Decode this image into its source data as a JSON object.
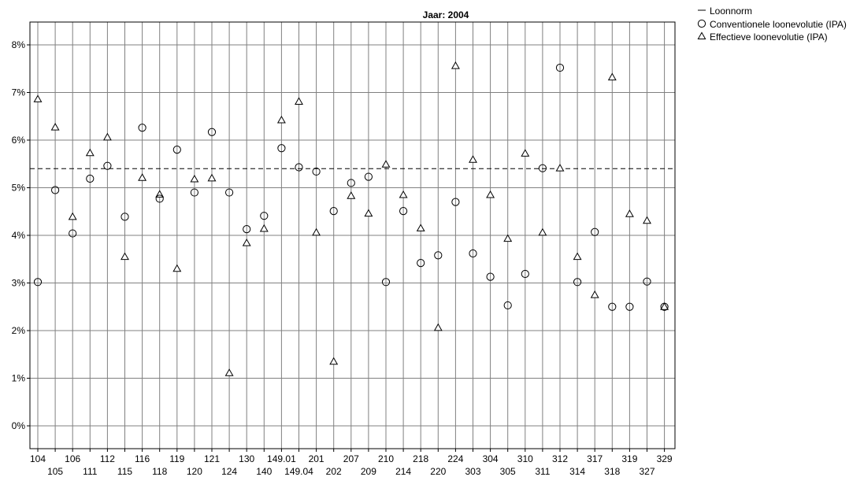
{
  "chart_data": {
    "type": "scatter",
    "title": "Jaar: 2004",
    "xlabel": "",
    "ylabel": "",
    "ylim": [
      -0.4,
      8.5
    ],
    "yticks": [
      0,
      1,
      2,
      3,
      4,
      5,
      6,
      7,
      8
    ],
    "ytick_labels": [
      "0%",
      "1%",
      "2%",
      "3%",
      "4%",
      "5%",
      "6%",
      "7%",
      "8%"
    ],
    "grid": true,
    "legend_position": "top-right",
    "categories": [
      "104",
      "105",
      "106",
      "111",
      "112",
      "115",
      "116",
      "118",
      "119",
      "120",
      "121",
      "124",
      "130",
      "140",
      "149.01",
      "149.04",
      "201",
      "202",
      "207",
      "209",
      "210",
      "214",
      "218",
      "220",
      "224",
      "303",
      "304",
      "305",
      "310",
      "311",
      "312",
      "314",
      "317",
      "318",
      "319",
      "327",
      "329"
    ],
    "reference_line": {
      "name": "Loonnorm",
      "value": 5.4,
      "style": "dashed"
    },
    "series": [
      {
        "name": "Conventionele loonevolutie (IPA)",
        "marker": "circle",
        "values": [
          3.02,
          4.95,
          4.04,
          5.19,
          5.46,
          4.39,
          6.26,
          4.77,
          5.8,
          4.9,
          6.17,
          4.9,
          4.13,
          4.41,
          5.83,
          5.43,
          5.34,
          4.51,
          5.1,
          5.23,
          3.02,
          4.51,
          3.42,
          3.58,
          4.7,
          3.62,
          3.13,
          2.53,
          3.19,
          5.41,
          7.52,
          3.02,
          4.07,
          2.5,
          2.5,
          3.03,
          2.5
        ]
      },
      {
        "name": "Effectieve loonevolutie (IPA)",
        "marker": "triangle",
        "values": [
          6.86,
          6.27,
          4.39,
          5.73,
          6.06,
          3.55,
          5.21,
          4.86,
          3.3,
          5.18,
          5.2,
          1.11,
          3.84,
          4.14,
          6.42,
          6.81,
          4.06,
          1.35,
          4.83,
          4.46,
          5.49,
          4.85,
          4.15,
          2.06,
          7.56,
          5.59,
          4.85,
          3.93,
          5.72,
          4.06,
          5.41,
          3.55,
          2.75,
          7.32,
          4.45,
          4.31,
          2.5
        ]
      }
    ]
  }
}
